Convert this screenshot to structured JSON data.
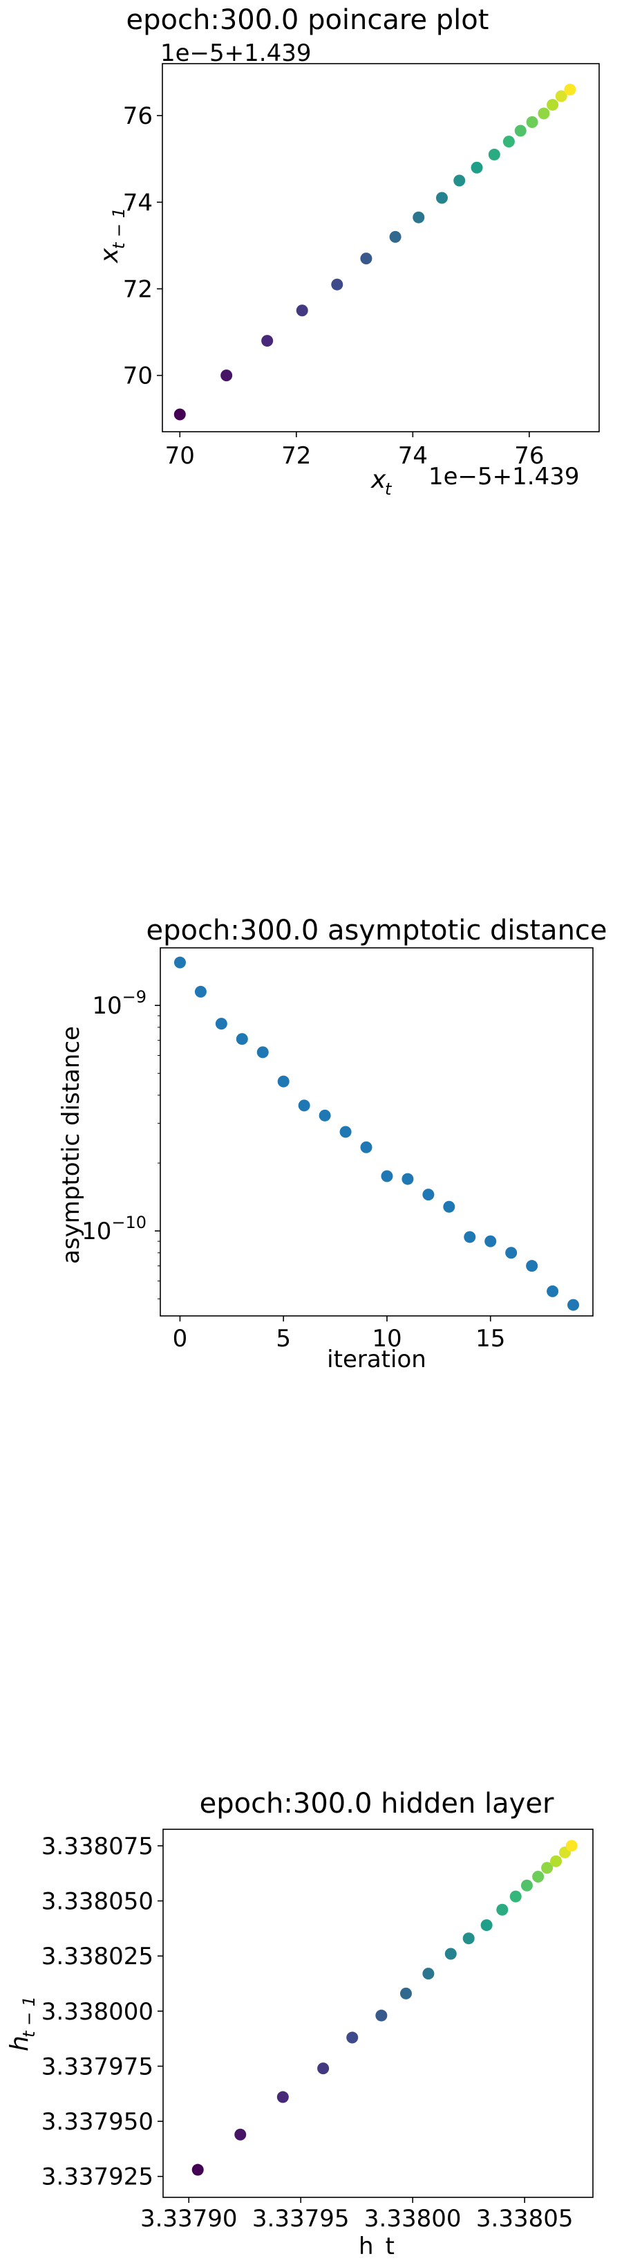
{
  "charts": {
    "poincare": {
      "title": "epoch:300.0 poincare plot",
      "x_offset": "1e−5+1.439",
      "y_offset": "1e−5+1.439"
    },
    "asymptotic": {
      "title": "epoch:300.0 asymptotic distance",
      "xlabel": "iteration",
      "ylabel": "asymptotic distance"
    },
    "hidden": {
      "title": "epoch:300.0 hidden layer",
      "xlabel": "h_t"
    }
  },
  "chart_data": [
    {
      "type": "scatter",
      "title": "epoch:300.0 poincare plot",
      "xlabel": "x_t",
      "ylabel": "x_{t-1}",
      "x_offset_label": "1e-5+1.439",
      "y_offset_label": "1e-5+1.439",
      "colormap": "viridis",
      "xlim": [
        69.7,
        77.2
      ],
      "ylim": [
        68.7,
        77.2
      ],
      "xticks": [
        "70",
        "72",
        "74",
        "76"
      ],
      "yticks": [
        "70",
        "72",
        "74",
        "76"
      ],
      "x": [
        70.0,
        70.8,
        71.5,
        72.1,
        72.7,
        73.2,
        73.7,
        74.1,
        74.5,
        74.8,
        75.1,
        75.4,
        75.65,
        75.85,
        76.05,
        76.25,
        76.4,
        76.55,
        76.7
      ],
      "y": [
        69.1,
        70.0,
        70.8,
        71.5,
        72.1,
        72.7,
        73.2,
        73.65,
        74.1,
        74.5,
        74.8,
        75.1,
        75.4,
        75.65,
        75.85,
        76.05,
        76.25,
        76.45,
        76.6
      ]
    },
    {
      "type": "scatter",
      "title": "epoch:300.0 asymptotic distance",
      "xlabel": "iteration",
      "ylabel": "asymptotic distance",
      "yscale": "log",
      "color": "#1f77b4",
      "xlim": [
        -0.95,
        19.95
      ],
      "ylim": [
        4.2e-11,
        1.8e-09
      ],
      "xticks": [
        "0",
        "5",
        "10",
        "15"
      ],
      "yticks": [
        "10^-9",
        "10^-10"
      ],
      "x": [
        0,
        1,
        2,
        3,
        4,
        5,
        6,
        7,
        8,
        9,
        10,
        11,
        12,
        13,
        14,
        15,
        16,
        17,
        18,
        19
      ],
      "y": [
        1.55e-09,
        1.15e-09,
        8.3e-10,
        7.1e-10,
        6.2e-10,
        4.6e-10,
        3.6e-10,
        3.25e-10,
        2.75e-10,
        2.35e-10,
        1.75e-10,
        1.7e-10,
        1.45e-10,
        1.28e-10,
        9.4e-11,
        9e-11,
        8e-11,
        7e-11,
        5.4e-11,
        4.7e-11
      ]
    },
    {
      "type": "scatter",
      "title": "epoch:300.0 hidden layer",
      "xlabel": "h_t",
      "ylabel": "h_{t-1}",
      "colormap": "viridis",
      "xlim": [
        3.3378885,
        3.3380805
      ],
      "ylim": [
        3.3379155,
        3.3380825
      ],
      "xticks": [
        "3.33790",
        "3.33795",
        "3.33800",
        "3.33805"
      ],
      "yticks": [
        "3.338075",
        "3.338050",
        "3.338025",
        "3.338000",
        "3.337975",
        "3.337950",
        "3.337925"
      ],
      "x": [
        3.337904,
        3.337923,
        3.337942,
        3.33796,
        3.337973,
        3.337986,
        3.337997,
        3.338007,
        3.338017,
        3.338025,
        3.338033,
        3.33804,
        3.338046,
        3.338051,
        3.338056,
        3.33806,
        3.338064,
        3.338068,
        3.338071
      ],
      "y": [
        3.337928,
        3.337944,
        3.337961,
        3.337974,
        3.337988,
        3.337998,
        3.338008,
        3.338017,
        3.338026,
        3.338033,
        3.338039,
        3.338046,
        3.338052,
        3.338057,
        3.338061,
        3.338065,
        3.338068,
        3.338072,
        3.338075
      ]
    }
  ]
}
